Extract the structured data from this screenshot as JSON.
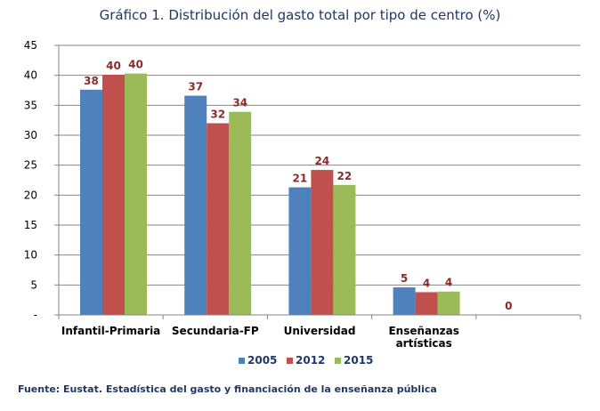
{
  "chart_data": {
    "type": "bar",
    "title": "Gráfico 1. Distribución del gasto total por tipo de centro (%)",
    "categories": [
      [
        "Infantil-Primaria"
      ],
      [
        "Secundaria-FP"
      ],
      [
        "Universidad"
      ],
      [
        "Enseñanzas",
        "artísticas"
      ],
      [
        ""
      ]
    ],
    "series": [
      {
        "name": "2005",
        "color": "#4f81bd",
        "values": [
          37.6,
          36.6,
          21.3,
          4.6,
          0
        ],
        "labels": [
          "38",
          "37",
          "21",
          "5",
          "0"
        ]
      },
      {
        "name": "2012",
        "color": "#c0504d",
        "values": [
          40.1,
          32.0,
          24.2,
          3.8,
          null
        ],
        "labels": [
          "40",
          "32",
          "24",
          "4",
          ""
        ]
      },
      {
        "name": "2015",
        "color": "#9bbb59",
        "values": [
          40.3,
          33.9,
          21.7,
          3.9,
          null
        ],
        "labels": [
          "40",
          "34",
          "22",
          "4",
          ""
        ]
      }
    ],
    "ylim": [
      0,
      45
    ],
    "yticks": [
      "-",
      "5",
      "10",
      "15",
      "20",
      "25",
      "30",
      "35",
      "40",
      "45"
    ],
    "grid": true,
    "legend_position": "bottom",
    "xlabel": "",
    "ylabel": ""
  },
  "source": "Fuente: Eustat. Estadística del gasto y financiación de la enseñanza pública"
}
